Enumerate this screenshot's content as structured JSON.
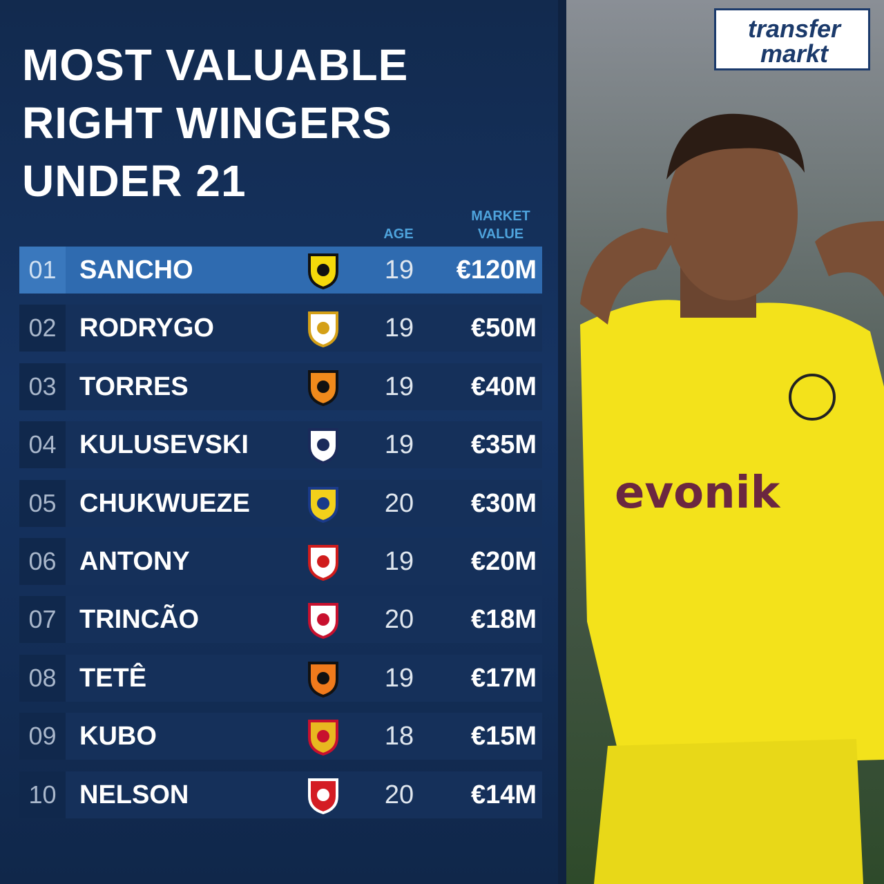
{
  "header": {
    "title_lines": [
      "MOST VALUABLE",
      "RIGHT WINGERS",
      "UNDER 21"
    ]
  },
  "logo": {
    "line1": "transfer",
    "line2": "markt"
  },
  "table": {
    "columns": {
      "age": "AGE",
      "market_value": [
        "MARKET",
        "VALUE"
      ]
    },
    "rows": [
      [
        "01",
        "SANCHO",
        "19",
        "€120M"
      ],
      [
        "02",
        "RODRYGO",
        "19",
        "€50M"
      ],
      [
        "03",
        "TORRES",
        "19",
        "€40M"
      ],
      [
        "04",
        "KULUSEVSKI",
        "19",
        "€35M"
      ],
      [
        "05",
        "CHUKWUEZE",
        "20",
        "€30M"
      ],
      [
        "06",
        "ANTONY",
        "19",
        "€20M"
      ],
      [
        "07",
        "TRINCÃO",
        "20",
        "€18M"
      ],
      [
        "08",
        "TETÊ",
        "19",
        "€17M"
      ],
      [
        "09",
        "KUBO",
        "18",
        "€15M"
      ],
      [
        "10",
        "NELSON",
        "20",
        "€14M"
      ]
    ]
  },
  "photo": {
    "sponsor": "evonik"
  }
}
